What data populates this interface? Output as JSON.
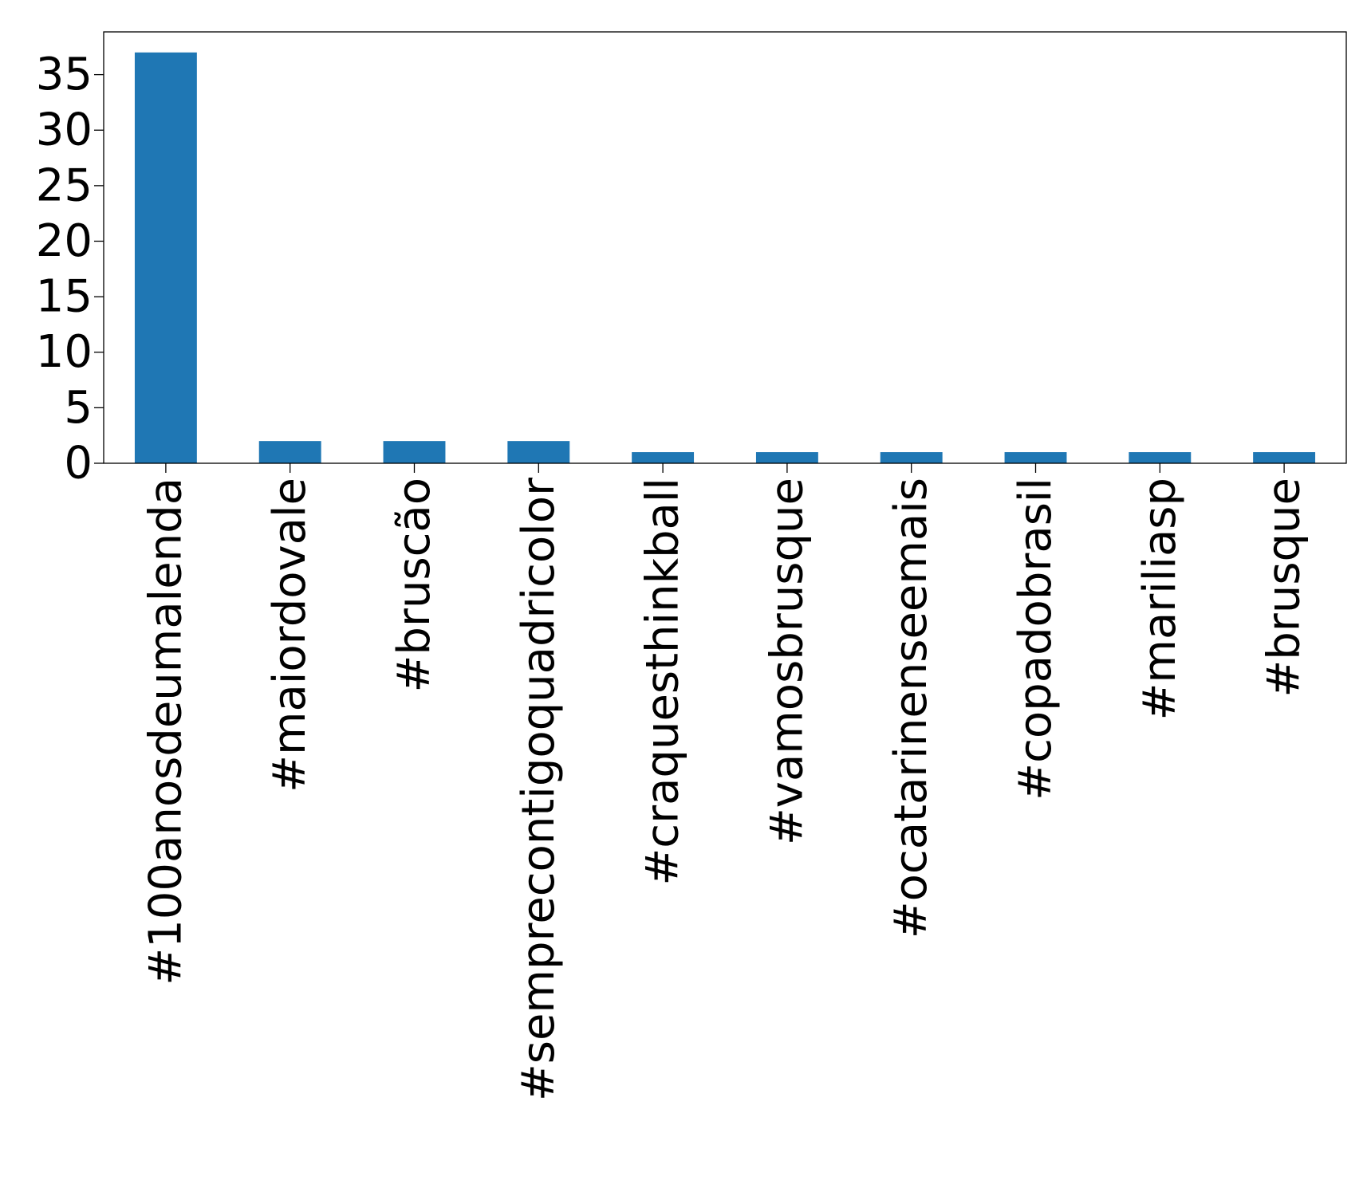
{
  "chart_data": {
    "type": "bar",
    "title": "",
    "xlabel": "",
    "ylabel": "",
    "categories": [
      "#100anosdeumalenda",
      "#maiordovale",
      "#bruscão",
      "#semprecontigoquadricolor",
      "#craquesthinkball",
      "#vamosbrusque",
      "#ocatarinenseemais",
      "#copadobrasil",
      "#mariliasp",
      "#brusque"
    ],
    "values": [
      37,
      2,
      2,
      2,
      1,
      1,
      1,
      1,
      1,
      1
    ],
    "ylim": [
      0,
      38.85
    ],
    "yticks": [
      0,
      5,
      10,
      15,
      20,
      25,
      30,
      35
    ],
    "grid": false,
    "legend": "none",
    "bar_color": "#1f77b4"
  }
}
